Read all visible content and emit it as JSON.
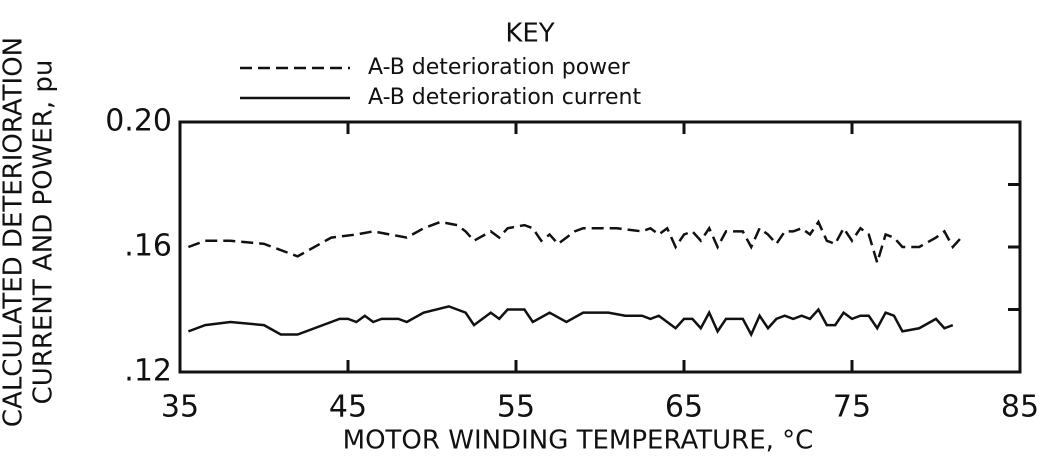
{
  "chart_data": {
    "type": "line",
    "legend_title": "KEY",
    "xlabel": "MOTOR WINDING TEMPERATURE, °C",
    "ylabel": [
      "CALCULATED DETERIORATION",
      "CURRENT AND POWER, pu"
    ],
    "xlim": [
      35,
      85
    ],
    "xticks": [
      35,
      45,
      55,
      65,
      75,
      85
    ],
    "ylim": [
      0.12,
      0.2
    ],
    "yticks": [
      {
        "value": 0.12,
        "label": ".12"
      },
      {
        "value": 0.16,
        "label": ".16"
      },
      {
        "value": 0.2,
        "label": "0.20"
      }
    ],
    "yticks_minor": [
      0.14,
      0.18
    ],
    "series": [
      {
        "name": "A-B deterioration power",
        "color": "#111111",
        "dash": true,
        "x": [
          35.5,
          36.5,
          38,
          40,
          41.5,
          42,
          44,
          45.5,
          46.5,
          47.5,
          48.5,
          49.5,
          50.5,
          51.5,
          52,
          52.5,
          53.5,
          54,
          54.5,
          55.5,
          56,
          56.5,
          57,
          57.5,
          58.5,
          59,
          61,
          62.5,
          63,
          63.5,
          64,
          64.5,
          65,
          65.5,
          66,
          66.5,
          67,
          67.5,
          68.5,
          69,
          69.5,
          70,
          70.5,
          71,
          71.5,
          72,
          72.5,
          73,
          73.5,
          74,
          74.5,
          75,
          75.5,
          76,
          76.5,
          77,
          77.5,
          78,
          79,
          80,
          80.5,
          81,
          81.5
        ],
        "values": [
          0.16,
          0.162,
          0.162,
          0.161,
          0.158,
          0.157,
          0.163,
          0.164,
          0.165,
          0.164,
          0.163,
          0.166,
          0.168,
          0.167,
          0.165,
          0.162,
          0.165,
          0.163,
          0.166,
          0.167,
          0.166,
          0.162,
          0.164,
          0.161,
          0.165,
          0.166,
          0.166,
          0.165,
          0.166,
          0.164,
          0.166,
          0.16,
          0.164,
          0.165,
          0.162,
          0.166,
          0.16,
          0.165,
          0.165,
          0.16,
          0.166,
          0.164,
          0.161,
          0.165,
          0.165,
          0.166,
          0.164,
          0.168,
          0.162,
          0.161,
          0.166,
          0.162,
          0.166,
          0.164,
          0.155,
          0.164,
          0.163,
          0.16,
          0.16,
          0.163,
          0.165,
          0.16,
          0.163
        ]
      },
      {
        "name": "A-B deterioration current",
        "color": "#111111",
        "dash": false,
        "x": [
          35.5,
          36.5,
          38,
          40,
          41,
          42,
          44,
          44.5,
          45,
          45.5,
          46,
          46.5,
          47,
          48,
          48.5,
          49.5,
          51,
          52,
          52.5,
          53.5,
          54,
          54.5,
          55.5,
          56,
          57,
          58,
          59,
          60.5,
          61.5,
          62.5,
          63,
          63.5,
          64,
          64.5,
          65,
          65.5,
          66,
          66.5,
          67,
          67.5,
          68.5,
          69,
          69.5,
          70,
          70.5,
          71,
          71.5,
          72,
          72.5,
          73,
          73.5,
          74,
          74.5,
          75,
          75.5,
          76,
          76.5,
          77,
          77.5,
          78,
          79,
          80,
          80.5,
          81
        ],
        "values": [
          0.133,
          0.135,
          0.136,
          0.135,
          0.132,
          0.132,
          0.136,
          0.137,
          0.137,
          0.136,
          0.138,
          0.136,
          0.137,
          0.137,
          0.136,
          0.139,
          0.141,
          0.139,
          0.135,
          0.139,
          0.137,
          0.14,
          0.14,
          0.136,
          0.139,
          0.136,
          0.139,
          0.139,
          0.138,
          0.138,
          0.137,
          0.138,
          0.136,
          0.134,
          0.137,
          0.137,
          0.134,
          0.139,
          0.133,
          0.137,
          0.137,
          0.132,
          0.138,
          0.134,
          0.137,
          0.138,
          0.137,
          0.138,
          0.137,
          0.14,
          0.135,
          0.135,
          0.139,
          0.137,
          0.138,
          0.138,
          0.134,
          0.139,
          0.138,
          0.133,
          0.134,
          0.137,
          0.134,
          0.135
        ]
      }
    ]
  }
}
